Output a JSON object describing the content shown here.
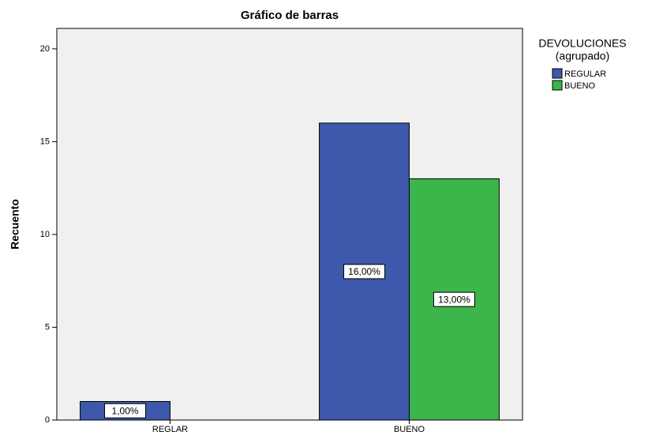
{
  "chart_data": {
    "type": "bar",
    "title": "Gráfico de barras",
    "y_label": "Recuento",
    "legend_title": [
      "DEVOLUCIONES",
      "(agrupado)"
    ],
    "categories": [
      "REGLAR",
      "BUENO"
    ],
    "series": [
      {
        "name": "REGULAR",
        "color": "#3e58ac",
        "values": [
          1,
          16
        ],
        "value_labels": [
          "1,00%",
          "16,00%"
        ]
      },
      {
        "name": "BUENO",
        "color": "#3cb54a",
        "values": [
          null,
          13
        ],
        "value_labels": [
          null,
          "13,00%"
        ]
      }
    ],
    "ylim": [
      0,
      21.1
    ],
    "yticks": [
      0,
      5,
      10,
      15,
      20
    ],
    "legend": "right"
  }
}
